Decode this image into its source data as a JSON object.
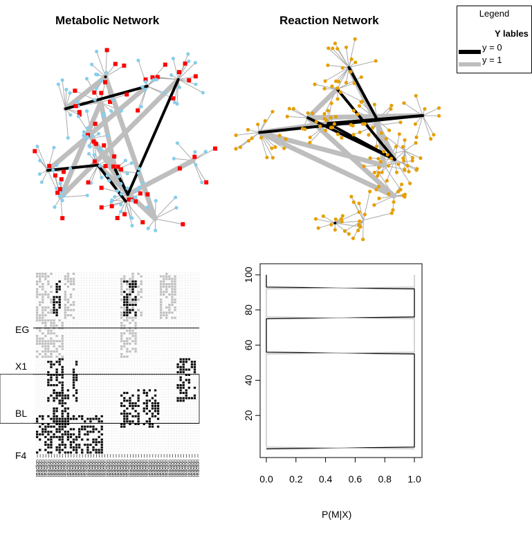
{
  "titles": {
    "metabolic": "Metabolic Network",
    "reaction": "Reaction Network"
  },
  "legend": {
    "title": "Legend",
    "subtitle": "Y lables",
    "items": [
      {
        "label": "y = 0",
        "color": "#000000"
      },
      {
        "label": "y = 1",
        "color": "#bebebe"
      }
    ]
  },
  "colors": {
    "metabolite_node": "#ff0000",
    "gene_node": "#87ceeb",
    "reaction_node": "#e69f00",
    "edge": "#a9a9a9",
    "edge_y0": "#000000",
    "edge_y1": "#bebebe"
  },
  "heatmap": {
    "row_labels": [
      "EG",
      "X1",
      "BL",
      "F4"
    ],
    "col_label_prefix": "reaction"
  },
  "chart_data": {
    "type": "line",
    "xlabel": "P(M|X)",
    "ylabel": "",
    "xlim": [
      0.0,
      1.0
    ],
    "ylim": [
      0,
      100
    ],
    "x_ticks": [
      "0.0",
      "0.2",
      "0.4",
      "0.6",
      "0.8",
      "1.0"
    ],
    "y_ticks": [
      "20",
      "40",
      "60",
      "80",
      "100"
    ],
    "series": [
      {
        "color": "#000000",
        "points": [
          [
            0.0,
            100
          ],
          [
            0.0,
            93
          ],
          [
            1.0,
            92
          ],
          [
            1.0,
            76
          ],
          [
            0.0,
            75
          ],
          [
            0.0,
            56
          ],
          [
            1.0,
            55
          ],
          [
            1.0,
            2
          ],
          [
            0.0,
            1
          ]
        ]
      },
      {
        "color": "#bebebe",
        "points": [
          [
            1.0,
            100
          ],
          [
            1.0,
            93
          ],
          [
            0.0,
            92
          ],
          [
            0.0,
            76
          ],
          [
            1.0,
            75
          ],
          [
            1.0,
            56
          ],
          [
            0.0,
            55
          ],
          [
            0.0,
            2
          ],
          [
            1.0,
            1
          ]
        ]
      }
    ]
  }
}
